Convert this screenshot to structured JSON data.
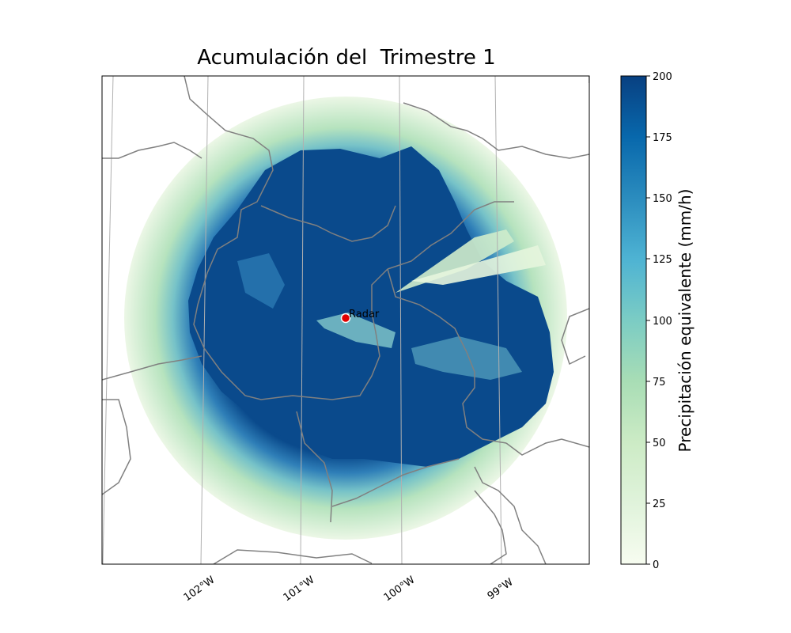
{
  "title": "Acumulación del  Trimestre 1",
  "colormap": {
    "name": "GnBu",
    "stops": [
      "#f7fcf0",
      "#e0f3db",
      "#ccebc5",
      "#a8ddb5",
      "#7bccc4",
      "#4eb3d3",
      "#2b8cbe",
      "#0868ac",
      "#084081"
    ]
  },
  "colorbar": {
    "label": "Precipitación equivalente (mm/h)",
    "min": 0,
    "max": 200,
    "ticks": [
      "0",
      "25",
      "50",
      "75",
      "100",
      "125",
      "150",
      "175",
      "200"
    ]
  },
  "longitude_ticks": [
    "102°W",
    "101°W",
    "100°W",
    "99°W"
  ],
  "radar": {
    "label": "Radar",
    "marker_color": "#e00000"
  },
  "colors": {
    "boundary_lines": "#808080",
    "gridlines": "#b0b0b0",
    "heavy_rain": "#0a4a8c"
  }
}
